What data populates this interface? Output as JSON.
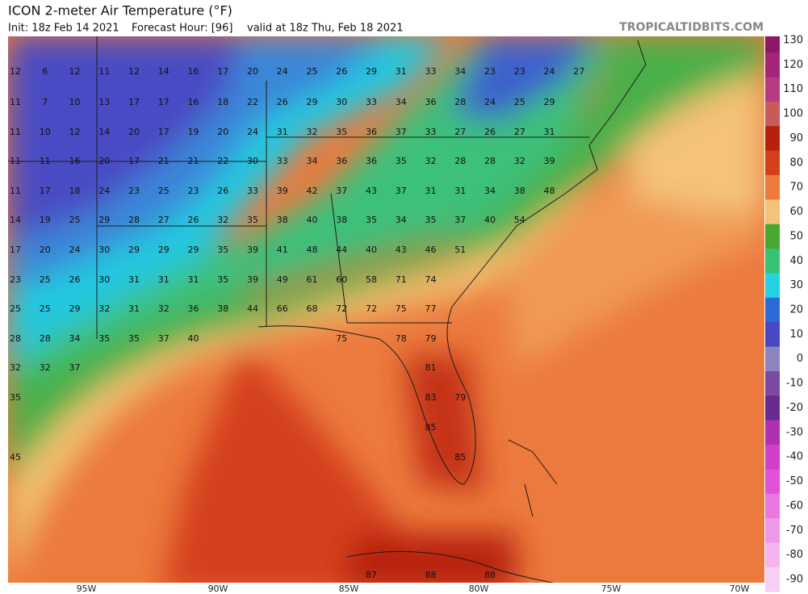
{
  "header": {
    "title": "ICON 2-meter Air Temperature (°F)",
    "init": "Init: 18z Feb 14 2021",
    "forecast_hour": "Forecast Hour: [96]",
    "valid": "valid at 18z Thu, Feb 18 2021",
    "site": "TROPICALTIDBITS.COM"
  },
  "colorbar": {
    "ticks": [
      130,
      120,
      110,
      100,
      90,
      80,
      70,
      60,
      50,
      40,
      30,
      20,
      10,
      0,
      -10,
      -20,
      -30,
      -40,
      -50,
      -60,
      -70,
      -80,
      -90
    ],
    "colors": [
      "#8e1868",
      "#a5247a",
      "#b83a80",
      "#c85a5a",
      "#b8200e",
      "#d4401a",
      "#ee7a3a",
      "#f4c27a",
      "#48a830",
      "#38c274",
      "#24d2e4",
      "#2c6ad6",
      "#4848c4",
      "#8c84c0",
      "#7a4aa4",
      "#6a2a90",
      "#b030b0",
      "#d040c8",
      "#e050d8",
      "#e878e0",
      "#f098e8",
      "#f4b4f0",
      "#f8d0f6"
    ]
  },
  "longitudes": [
    "95W",
    "90W",
    "85W",
    "80W",
    "75W",
    "70W"
  ],
  "map_labels": [
    [
      "12",
      "6",
      "12",
      "11",
      "12",
      "14",
      "16",
      "17",
      "20",
      "24",
      "25",
      "26",
      "29",
      "31",
      "33",
      "34",
      "23",
      "23",
      "24",
      "27"
    ],
    [
      "11",
      "7",
      "10",
      "13",
      "17",
      "17",
      "16",
      "18",
      "22",
      "26",
      "29",
      "30",
      "33",
      "34",
      "36",
      "28",
      "24",
      "25",
      "29"
    ],
    [
      "11",
      "10",
      "12",
      "14",
      "20",
      "17",
      "19",
      "20",
      "24",
      "31",
      "32",
      "35",
      "36",
      "37",
      "33",
      "27",
      "26",
      "27",
      "31"
    ],
    [
      "11",
      "11",
      "16",
      "20",
      "17",
      "21",
      "21",
      "22",
      "30",
      "33",
      "34",
      "36",
      "36",
      "35",
      "32",
      "28",
      "28",
      "32",
      "39"
    ],
    [
      "11",
      "17",
      "18",
      "24",
      "23",
      "25",
      "23",
      "26",
      "33",
      "39",
      "42",
      "37",
      "43",
      "37",
      "31",
      "31",
      "34",
      "38",
      "48"
    ],
    [
      "14",
      "19",
      "25",
      "29",
      "28",
      "27",
      "26",
      "32",
      "35",
      "38",
      "40",
      "38",
      "35",
      "34",
      "35",
      "37",
      "40",
      "54"
    ],
    [
      "17",
      "20",
      "24",
      "30",
      "29",
      "29",
      "29",
      "35",
      "39",
      "41",
      "48",
      "44",
      "40",
      "43",
      "46",
      "51"
    ],
    [
      "23",
      "25",
      "26",
      "30",
      "31",
      "31",
      "31",
      "35",
      "39",
      "49",
      "61",
      "60",
      "58",
      "71",
      "74"
    ],
    [
      "25",
      "25",
      "29",
      "32",
      "31",
      "32",
      "36",
      "38",
      "44",
      "66",
      "68",
      "72",
      "72",
      "75",
      "77"
    ],
    [
      "28",
      "28",
      "34",
      "35",
      "35",
      "37",
      "40",
      "75",
      "78",
      "79"
    ],
    [
      "32",
      "32",
      "37",
      "81"
    ],
    [
      "35",
      "83",
      "79"
    ],
    [
      "85"
    ],
    [
      "45",
      "85"
    ],
    [
      "87",
      "88",
      "88"
    ]
  ]
}
